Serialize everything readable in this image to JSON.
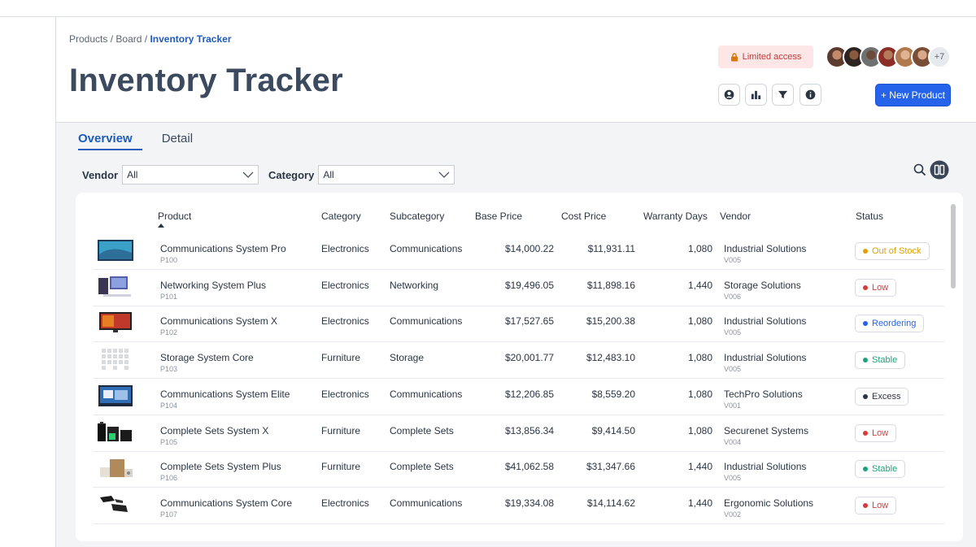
{
  "breadcrumb": {
    "p1": "Products",
    "sep1": "/",
    "p2": "Board",
    "sep2": "/",
    "current": "Inventory Tracker"
  },
  "title": "Inventory Tracker",
  "access_label": "Limited access",
  "avatars_more": "+7",
  "new_button": "+ New Product",
  "tabs": {
    "overview": "Overview",
    "detail": "Detail"
  },
  "filters": {
    "vendor_label": "Vendor",
    "vendor_value": "All",
    "category_label": "Category",
    "category_value": "All"
  },
  "table": {
    "headers": {
      "product": "Product",
      "category": "Category",
      "subcategory": "Subcategory",
      "base_price": "Base Price",
      "cost_price": "Cost Price",
      "warranty": "Warranty Days",
      "vendor": "Vendor",
      "status": "Status"
    },
    "rows": [
      {
        "name": "Communications System Pro",
        "id": "P100",
        "category": "Electronics",
        "subcategory": "Communications",
        "base": "$14,000.22",
        "cost": "$11,931.11",
        "warranty": "1,080",
        "vendor": "Industrial Solutions",
        "vid": "V005",
        "status": "Out of Stock"
      },
      {
        "name": "Networking System Plus",
        "id": "P101",
        "category": "Electronics",
        "subcategory": "Networking",
        "base": "$19,496.05",
        "cost": "$11,898.16",
        "warranty": "1,440",
        "vendor": "Storage Solutions",
        "vid": "V006",
        "status": "Low"
      },
      {
        "name": "Communications System X",
        "id": "P102",
        "category": "Electronics",
        "subcategory": "Communications",
        "base": "$17,527.65",
        "cost": "$15,200.38",
        "warranty": "1,080",
        "vendor": "Industrial Solutions",
        "vid": "V005",
        "status": "Reordering"
      },
      {
        "name": "Storage System Core",
        "id": "P103",
        "category": "Furniture",
        "subcategory": "Storage",
        "base": "$20,001.77",
        "cost": "$12,483.10",
        "warranty": "1,080",
        "vendor": "Industrial Solutions",
        "vid": "V005",
        "status": "Stable"
      },
      {
        "name": "Communications System Elite",
        "id": "P104",
        "category": "Electronics",
        "subcategory": "Communications",
        "base": "$12,206.85",
        "cost": "$8,559.20",
        "warranty": "1,080",
        "vendor": "TechPro Solutions",
        "vid": "V001",
        "status": "Excess"
      },
      {
        "name": "Complete Sets System X",
        "id": "P105",
        "category": "Furniture",
        "subcategory": "Complete Sets",
        "base": "$13,856.34",
        "cost": "$9,414.50",
        "warranty": "1,080",
        "vendor": "Securenet Systems",
        "vid": "V004",
        "status": "Low"
      },
      {
        "name": "Complete Sets System Plus",
        "id": "P106",
        "category": "Furniture",
        "subcategory": "Complete Sets",
        "base": "$41,062.58",
        "cost": "$31,347.66",
        "warranty": "1,440",
        "vendor": "Industrial Solutions",
        "vid": "V005",
        "status": "Stable"
      },
      {
        "name": "Communications System Core",
        "id": "P107",
        "category": "Electronics",
        "subcategory": "Communications",
        "base": "$19,334.08",
        "cost": "$14,114.62",
        "warranty": "1,440",
        "vendor": "Ergonomic Solutions",
        "vid": "V002",
        "status": "Low"
      }
    ]
  },
  "status_colors": {
    "Out of Stock": "#e0a100",
    "Low": "#d93b3b",
    "Reordering": "#2563eb",
    "Stable": "#1aa37a",
    "Excess": "#2a3544"
  },
  "accent": "#2563eb",
  "icons": [
    "lock-icon",
    "user-circle-icon",
    "bar-chart-icon",
    "filter-icon",
    "info-icon",
    "search-icon",
    "columns-icon",
    "chevron-down-icon",
    "sort-asc-icon"
  ]
}
